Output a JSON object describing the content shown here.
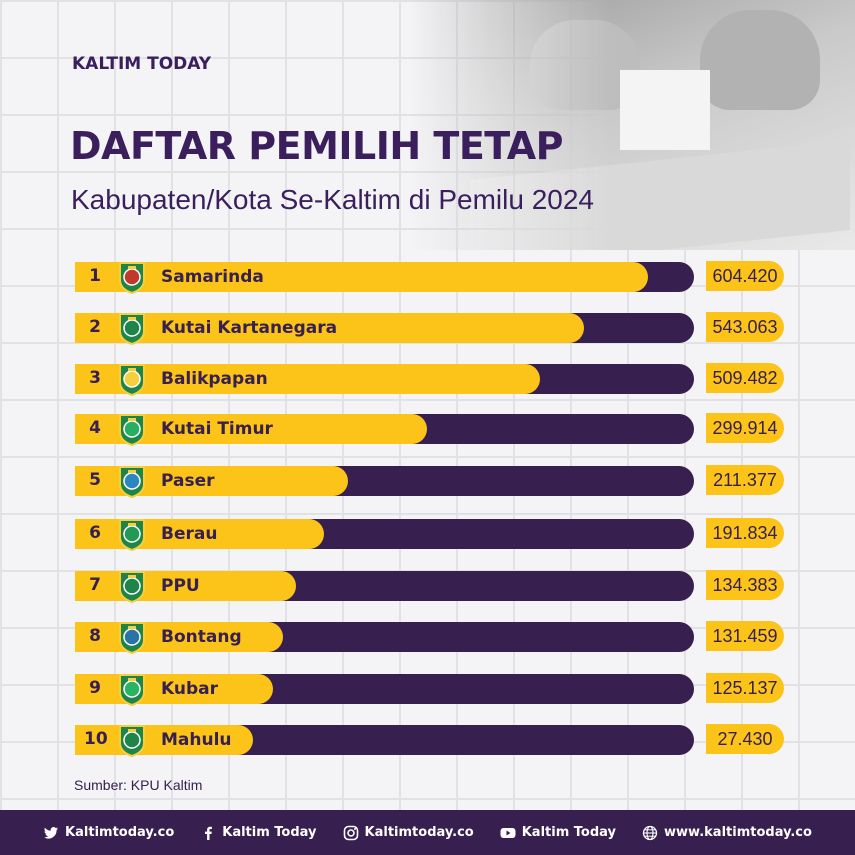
{
  "brand": "KALTIM TODAY",
  "title": "DAFTAR PEMILIH TETAP",
  "subtitle": "Kabupaten/Kota Se-Kaltim di Pemilu 2024",
  "source": "Sumber: KPU Kaltim",
  "colors": {
    "accent": "#fcc419",
    "dark": "#37204f",
    "text": "#3a1f5c"
  },
  "chart_data": {
    "type": "bar",
    "orientation": "horizontal",
    "title": "DAFTAR PEMILIH TETAP",
    "subtitle": "Kabupaten/Kota Se-Kaltim di Pemilu 2024",
    "xlim": [
      0,
      650000
    ],
    "rows": [
      {
        "rank": "1",
        "name": "Samarinda",
        "value": 604420,
        "label": "604.420",
        "emblem": "samarinda-emblem-icon"
      },
      {
        "rank": "2",
        "name": "Kutai Kartanegara",
        "value": 543063,
        "label": "543.063",
        "emblem": "kutai-kartanegara-emblem-icon"
      },
      {
        "rank": "3",
        "name": "Balikpapan",
        "value": 509482,
        "label": "509.482",
        "emblem": "balikpapan-emblem-icon"
      },
      {
        "rank": "4",
        "name": "Kutai Timur",
        "value": 299914,
        "label": "299.914",
        "emblem": "kutai-timur-emblem-icon"
      },
      {
        "rank": "5",
        "name": "Paser",
        "value": 211377,
        "label": "211.377",
        "emblem": "paser-emblem-icon"
      },
      {
        "rank": "6",
        "name": "Berau",
        "value": 191834,
        "label": "191.834",
        "emblem": "berau-emblem-icon"
      },
      {
        "rank": "7",
        "name": "PPU",
        "value": 134383,
        "label": "134.383",
        "emblem": "ppu-emblem-icon"
      },
      {
        "rank": "8",
        "name": "Bontang",
        "value": 131459,
        "label": "131.459",
        "emblem": "bontang-emblem-icon"
      },
      {
        "rank": "9",
        "name": "Kubar",
        "value": 125137,
        "label": "125.137",
        "emblem": "kubar-emblem-icon"
      },
      {
        "rank": "10",
        "name": "Mahulu",
        "value": 27430,
        "label": "27.430",
        "emblem": "mahulu-emblem-icon"
      }
    ]
  },
  "footer": {
    "items": [
      {
        "icon": "twitter-icon",
        "label": "Kaltimtoday.co"
      },
      {
        "icon": "facebook-icon",
        "label": "Kaltim Today"
      },
      {
        "icon": "instagram-icon",
        "label": "Kaltimtoday.co"
      },
      {
        "icon": "youtube-icon",
        "label": "Kaltim Today"
      },
      {
        "icon": "globe-icon",
        "label": "www.kaltimtoday.co"
      }
    ]
  }
}
